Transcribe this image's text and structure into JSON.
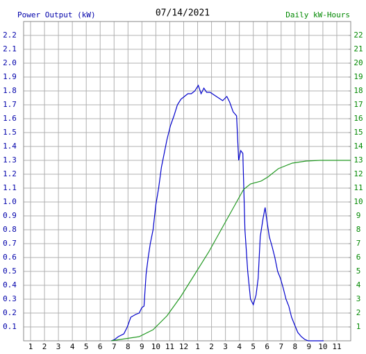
{
  "chart_data": {
    "type": "line",
    "title": "07/14/2021",
    "y_label": "Power Output (kW)",
    "y2_label": "Daily kW-Hours",
    "xlim": [
      0.5,
      24
    ],
    "xticks": [
      1,
      2,
      3,
      4,
      5,
      6,
      7,
      8,
      9,
      10,
      11,
      12,
      {
        "value": 13,
        "label": "1"
      },
      {
        "value": 14,
        "label": "2"
      },
      {
        "value": 15,
        "label": "3"
      },
      {
        "value": 16,
        "label": "4"
      },
      {
        "value": 17,
        "label": "5"
      },
      {
        "value": 18,
        "label": "6"
      },
      {
        "value": 19,
        "label": "7"
      },
      {
        "value": 20,
        "label": "8"
      },
      {
        "value": 21,
        "label": "9"
      },
      {
        "value": 22,
        "label": "10"
      },
      {
        "value": 23,
        "label": "11"
      }
    ],
    "ylim": [
      0,
      2.3
    ],
    "yticks": [
      0.1,
      0.2,
      0.3,
      0.4,
      0.5,
      0.6,
      0.7,
      0.8,
      0.9,
      {
        "value": 1,
        "label": "1.0"
      },
      1.1,
      1.2,
      1.3,
      1.4,
      1.5,
      1.6,
      1.7,
      1.8,
      1.9,
      {
        "value": 2,
        "label": "2.0"
      },
      2.1,
      2.2
    ],
    "y2lim": [
      0,
      23
    ],
    "y2ticks": [
      1,
      2,
      3,
      4,
      5,
      6,
      7,
      8,
      9,
      10,
      11,
      12,
      13,
      14,
      15,
      16,
      17,
      18,
      19,
      20,
      21,
      22
    ],
    "grid": true,
    "y_label_color": "#0000aa",
    "y2_label_color": "#008800",
    "series": [
      {
        "color": "#0000cc",
        "axis": "y",
        "x": [
          6.8,
          7.05,
          7.3,
          7.7,
          7.95,
          8.2,
          8.55,
          8.8,
          9.0,
          9.15,
          9.3,
          9.45,
          9.6,
          9.8,
          10.0,
          10.2,
          10.4,
          10.6,
          10.8,
          11.05,
          11.3,
          11.55,
          11.8,
          12.05,
          12.3,
          12.55,
          12.8,
          13.05,
          13.25,
          13.45,
          13.65,
          13.9,
          14.2,
          14.5,
          14.8,
          15.1,
          15.3,
          15.55,
          15.8,
          15.95,
          16.1,
          16.25,
          16.4,
          16.6,
          16.8,
          17.0,
          17.2,
          17.35,
          17.5,
          17.7,
          17.85,
          18.0,
          18.15,
          18.35,
          18.55,
          18.75,
          18.95,
          19.15,
          19.35,
          19.55,
          19.75,
          19.95,
          20.2,
          20.45,
          20.7,
          20.95,
          22.05
        ],
        "values": [
          0,
          0.01,
          0.03,
          0.05,
          0.1,
          0.17,
          0.19,
          0.2,
          0.24,
          0.25,
          0.48,
          0.6,
          0.7,
          0.8,
          0.98,
          1.1,
          1.25,
          1.35,
          1.45,
          1.55,
          1.62,
          1.7,
          1.74,
          1.76,
          1.78,
          1.78,
          1.8,
          1.84,
          1.78,
          1.82,
          1.79,
          1.79,
          1.77,
          1.75,
          1.73,
          1.76,
          1.72,
          1.65,
          1.62,
          1.3,
          1.37,
          1.35,
          0.8,
          0.5,
          0.3,
          0.26,
          0.33,
          0.45,
          0.75,
          0.88,
          0.96,
          0.85,
          0.75,
          0.68,
          0.6,
          0.5,
          0.45,
          0.38,
          0.3,
          0.25,
          0.17,
          0.12,
          0.06,
          0.03,
          0.01,
          0,
          0
        ]
      },
      {
        "color": "#229922",
        "axis": "y2",
        "x": [
          6.8,
          8.8,
          9.8,
          10.8,
          11.8,
          12.8,
          13.8,
          14.8,
          15.8,
          16.3,
          16.8,
          17.55,
          18.05,
          18.8,
          19.8,
          20.8,
          21.8,
          24
        ],
        "values": [
          0,
          0.3,
          0.8,
          1.8,
          3.2,
          4.8,
          6.4,
          8.2,
          10.0,
          10.9,
          11.3,
          11.5,
          11.8,
          12.4,
          12.8,
          12.95,
          13,
          13
        ]
      }
    ]
  }
}
